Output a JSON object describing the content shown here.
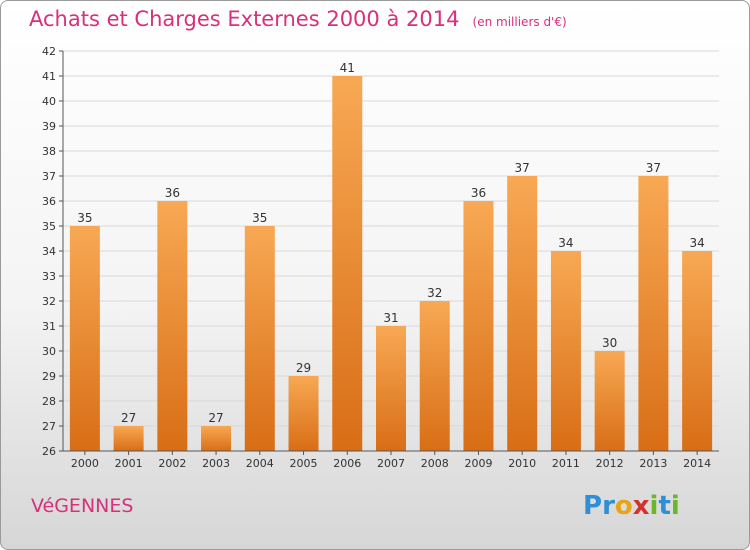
{
  "title": "Achats et Charges Externes 2000 à 2014",
  "subtitle": "(en milliers d'€)",
  "commune": "VéGENNES",
  "logo": {
    "letters": [
      "P",
      "r",
      "o",
      "x",
      "i",
      "t",
      "i"
    ],
    "colors": [
      "#2e8fd6",
      "#2e8fd6",
      "#e8a316",
      "#d6302c",
      "#6cb62c",
      "#2e8fd6",
      "#6cb62c"
    ]
  },
  "colors": {
    "bar_top": "#f8a854",
    "bar_bottom": "#d86e16",
    "title": "#d8307c",
    "grid": "#d9d9d9"
  },
  "chart_data": {
    "type": "bar",
    "categories": [
      "2000",
      "2001",
      "2002",
      "2003",
      "2004",
      "2005",
      "2006",
      "2007",
      "2008",
      "2009",
      "2010",
      "2011",
      "2012",
      "2013",
      "2014"
    ],
    "values": [
      35,
      27,
      36,
      27,
      35,
      29,
      41,
      31,
      32,
      36,
      37,
      34,
      30,
      37,
      34
    ],
    "ylim": [
      26,
      42
    ],
    "yticks": [
      26,
      27,
      28,
      29,
      30,
      31,
      32,
      33,
      34,
      35,
      36,
      37,
      38,
      39,
      40,
      41,
      42
    ],
    "grid": true,
    "legend": "none"
  }
}
